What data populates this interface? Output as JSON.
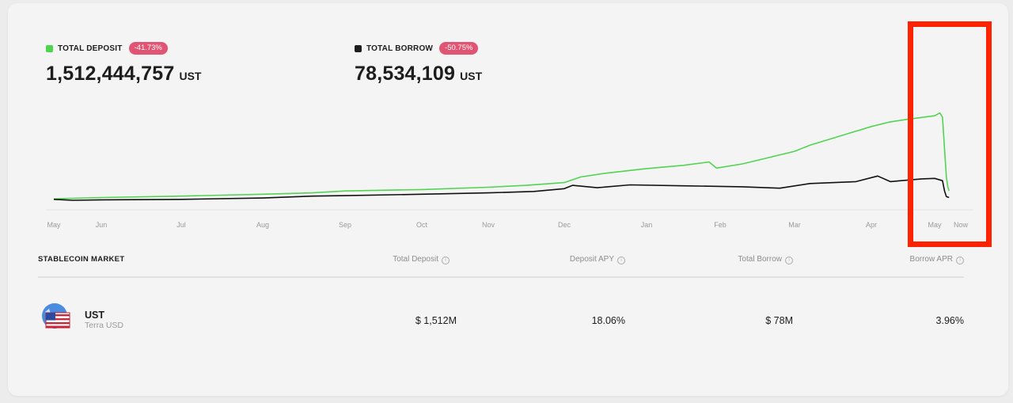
{
  "stats": [
    {
      "label": "TOTAL DEPOSIT",
      "change": "-41.73%",
      "value": "1,512,444,757",
      "unit": "UST",
      "color": "#4cd64c"
    },
    {
      "label": "TOTAL BORROW",
      "change": "-50.75%",
      "value": "78,534,109",
      "unit": "UST",
      "color": "#1d1d1d"
    }
  ],
  "badge_color": "#e25473",
  "chart_data": {
    "type": "line",
    "x_ticks": [
      "May",
      "Jun",
      "Jul",
      "Aug",
      "Sep",
      "Oct",
      "Nov",
      "Dec",
      "Jan",
      "Feb",
      "Mar",
      "Apr",
      "May",
      "Now"
    ],
    "series": [
      {
        "color": "#52d452",
        "points": [
          [
            0,
            0.3
          ],
          [
            1,
            0.6
          ],
          [
            2,
            0.9
          ],
          [
            3,
            1.3
          ],
          [
            3.6,
            1.6
          ],
          [
            4,
            2.0
          ],
          [
            5,
            2.3
          ],
          [
            6,
            2.8
          ],
          [
            6.5,
            3.2
          ],
          [
            7,
            3.8
          ],
          [
            7.2,
            5.0
          ],
          [
            7.5,
            5.8
          ],
          [
            8,
            6.8
          ],
          [
            8.5,
            7.5
          ],
          [
            8.85,
            8.2
          ],
          [
            8.95,
            6.9
          ],
          [
            9.3,
            7.8
          ],
          [
            10,
            10.5
          ],
          [
            10.2,
            11.8
          ],
          [
            10.7,
            14.3
          ],
          [
            11,
            15.8
          ],
          [
            11.3,
            16.8
          ],
          [
            11.55,
            17.3
          ],
          [
            12,
            18.1
          ],
          [
            12.2,
            18.7
          ],
          [
            12.3,
            17.8
          ],
          [
            12.38,
            11.0
          ],
          [
            12.45,
            5.0
          ],
          [
            12.5,
            3.0
          ],
          [
            12.55,
            2.0
          ]
        ],
        "area": false
      },
      {
        "color": "#111111",
        "points": [
          [
            0,
            0.2
          ],
          [
            0.4,
            0.0
          ],
          [
            1,
            0.1
          ],
          [
            2,
            0.2
          ],
          [
            3,
            0.5
          ],
          [
            3.6,
            0.9
          ],
          [
            4,
            1.0
          ],
          [
            5,
            1.3
          ],
          [
            6,
            1.6
          ],
          [
            6.6,
            1.9
          ],
          [
            7,
            2.5
          ],
          [
            7.1,
            3.2
          ],
          [
            7.4,
            2.7
          ],
          [
            7.8,
            3.3
          ],
          [
            8.5,
            3.1
          ],
          [
            9.3,
            2.9
          ],
          [
            9.8,
            2.6
          ],
          [
            10.2,
            3.6
          ],
          [
            10.8,
            4.0
          ],
          [
            11.1,
            5.2
          ],
          [
            11.3,
            4.0
          ],
          [
            11.8,
            4.6
          ],
          [
            12,
            4.7
          ],
          [
            12.3,
            4.2
          ],
          [
            12.38,
            2.0
          ],
          [
            12.45,
            0.8
          ],
          [
            12.55,
            0.6
          ]
        ]
      }
    ],
    "ylim": [
      0,
      20
    ]
  },
  "market": {
    "title": "STABLECOIN MARKET",
    "columns": [
      "Total Deposit",
      "Deposit APY",
      "Total Borrow",
      "Borrow APR"
    ],
    "rows": [
      {
        "symbol": "UST",
        "name": "Terra USD",
        "total_deposit": "$ 1,512M",
        "deposit_apy": "18.06%",
        "total_borrow": "$ 78M",
        "borrow_apr": "3.96%"
      }
    ]
  }
}
